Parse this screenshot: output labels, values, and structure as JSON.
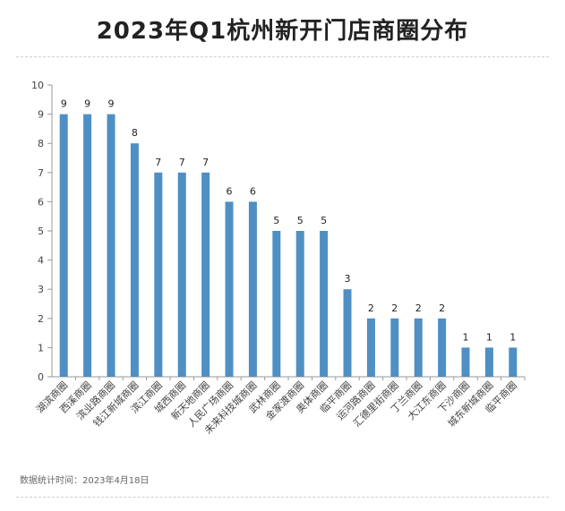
{
  "title": "2023年Q1杭州新开门店商圈分布",
  "footer": "数据统计时间：2023年4月18日",
  "colors": {
    "bar": "#4f8fc4",
    "axis": "#999999",
    "grid": "#d9d9d9",
    "text": "#444444"
  },
  "chart_data": {
    "type": "bar",
    "title": "2023年Q1杭州新开门店商圈分布",
    "xlabel": "",
    "ylabel": "",
    "ylim": [
      0,
      10
    ],
    "yticks": [
      0,
      1,
      2,
      3,
      4,
      5,
      6,
      7,
      8,
      9,
      10
    ],
    "grid": false,
    "legend": "none",
    "data_labels": true,
    "categories": [
      "湖滨商圈",
      "西溪商圈",
      "滨业路商圈",
      "钱江新城商圈",
      "滨江商圈",
      "城西商圈",
      "新天地商圈",
      "人民广场商圈",
      "未来科技城商圈",
      "武林商圈",
      "金家渡商圈",
      "奥体商圈",
      "临平商圈",
      "运河路商圈",
      "汇德里街商圈",
      "丁兰商圈",
      "大江东商圈",
      "下沙商圈",
      "城东新城商圈",
      "临平商圈"
    ],
    "values": [
      9,
      9,
      9,
      8,
      7,
      7,
      7,
      6,
      6,
      5,
      5,
      5,
      3,
      2,
      2,
      2,
      2,
      1,
      1,
      1
    ]
  }
}
